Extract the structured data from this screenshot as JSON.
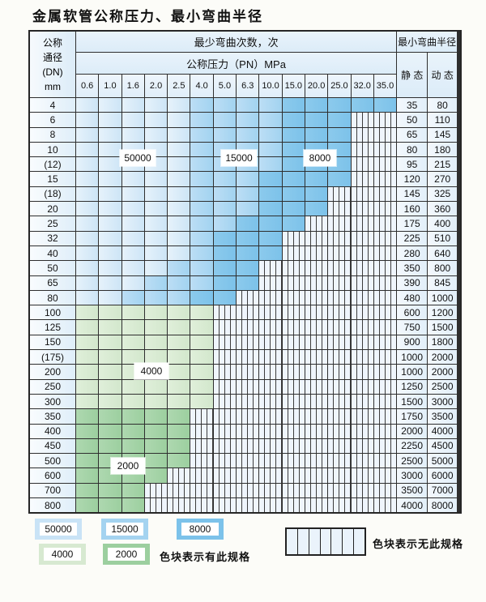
{
  "title": "金属软管公称压力、最小弯曲半径",
  "table": {
    "corner": {
      "lines": [
        "公称",
        "通径",
        "(DN)",
        "mm"
      ]
    },
    "bend_cycles_header": "最少弯曲次数，次",
    "radius_header": "最小弯曲半径",
    "pressure_header": "公称压力（PN）MPa",
    "static_header": "静 态",
    "dynamic_header": "动 态",
    "pressures": [
      "0.6",
      "1.0",
      "1.6",
      "2.0",
      "2.5",
      "4.0",
      "5.0",
      "6.3",
      "10.0",
      "15.0",
      "20.0",
      "25.0",
      "32.0",
      "35.0"
    ],
    "zone_key": {
      "L": "50000次 色块",
      "M": "15000次 色块",
      "D": "8000次 色块",
      "G": "4000次 色块",
      "E": "2000次 色块",
      "H": "无此规格(竖线网纹)"
    },
    "rows": [
      {
        "dn": "4",
        "cells": "LLLLLMMMMDDDDD",
        "static": "35",
        "dynamic": "80"
      },
      {
        "dn": "6",
        "cells": "LLLLLMMMMDDDHH",
        "static": "50",
        "dynamic": "110"
      },
      {
        "dn": "8",
        "cells": "LLLLLMMMMDDDHH",
        "static": "65",
        "dynamic": "145"
      },
      {
        "dn": "10",
        "cells": "LLLLLMMMMDDDHH",
        "static": "80",
        "dynamic": "180"
      },
      {
        "dn": "(12)",
        "cells": "LLLLLMMMMDDDHH",
        "static": "95",
        "dynamic": "215"
      },
      {
        "dn": "15",
        "cells": "LLLLLMMMDDDDHH",
        "static": "120",
        "dynamic": "270"
      },
      {
        "dn": "(18)",
        "cells": "LLLLLMMMDDDHHH",
        "static": "145",
        "dynamic": "325"
      },
      {
        "dn": "20",
        "cells": "LLLLLMMMDDDHHH",
        "static": "160",
        "dynamic": "360"
      },
      {
        "dn": "25",
        "cells": "LLLLLMMDDDHHHH",
        "static": "175",
        "dynamic": "400"
      },
      {
        "dn": "32",
        "cells": "LLLLLMDDDHHHHH",
        "static": "225",
        "dynamic": "510"
      },
      {
        "dn": "40",
        "cells": "LLLLLMDDDHHHHH",
        "static": "280",
        "dynamic": "640"
      },
      {
        "dn": "50",
        "cells": "LLLLMMDDHHHHHH",
        "static": "350",
        "dynamic": "800"
      },
      {
        "dn": "65",
        "cells": "LLLMMMDDHHHHHH",
        "static": "390",
        "dynamic": "845"
      },
      {
        "dn": "80",
        "cells": "LLMMMDDHHHHHHH",
        "static": "480",
        "dynamic": "1000"
      },
      {
        "dn": "100",
        "cells": "GGGGGGHHHHHHHH",
        "static": "600",
        "dynamic": "1200"
      },
      {
        "dn": "125",
        "cells": "GGGGGGHHHHHHHH",
        "static": "750",
        "dynamic": "1500"
      },
      {
        "dn": "150",
        "cells": "GGGGGGHHHHHHHH",
        "static": "900",
        "dynamic": "1800"
      },
      {
        "dn": "(175)",
        "cells": "GGGGGGHHHHHHHH",
        "static": "1000",
        "dynamic": "2000"
      },
      {
        "dn": "200",
        "cells": "GGGGGGHHHHHHHH",
        "static": "1000",
        "dynamic": "2000"
      },
      {
        "dn": "250",
        "cells": "GGGGGGHHHHHHHH",
        "static": "1250",
        "dynamic": "2500"
      },
      {
        "dn": "300",
        "cells": "GGGGGGHHHHHHHH",
        "static": "1500",
        "dynamic": "3000"
      },
      {
        "dn": "350",
        "cells": "EEEEEHHHHHHHHH",
        "static": "1750",
        "dynamic": "3500"
      },
      {
        "dn": "400",
        "cells": "EEEEEHHHHHHHHH",
        "static": "2000",
        "dynamic": "4000"
      },
      {
        "dn": "450",
        "cells": "EEEEEHHHHHHHHH",
        "static": "2250",
        "dynamic": "4500"
      },
      {
        "dn": "500",
        "cells": "EEEEEHHHHHHHHH",
        "static": "2500",
        "dynamic": "5000"
      },
      {
        "dn": "600",
        "cells": "EEEEHHHHHHHHHH",
        "static": "3000",
        "dynamic": "6000"
      },
      {
        "dn": "700",
        "cells": "EEEHHHHHHHHHHH",
        "static": "3500",
        "dynamic": "7000"
      },
      {
        "dn": "800",
        "cells": "EEEHHHHHHHHHHH",
        "static": "4000",
        "dynamic": "8000"
      }
    ]
  },
  "overlays": {
    "b50000": "50000",
    "b15000": "15000",
    "b8000": "8000",
    "b4000": "4000",
    "b2000": "2000"
  },
  "legend": {
    "items": [
      {
        "label": "50000",
        "color": "#c9e3f6"
      },
      {
        "label": "15000",
        "color": "#a4d3f0"
      },
      {
        "label": "8000",
        "color": "#7cc2ea"
      },
      {
        "label": "4000",
        "color": "#d7e9d1"
      },
      {
        "label": "2000",
        "color": "#9ccf9f"
      }
    ],
    "has_spec_text": "色块表示有此规格",
    "no_spec_text": "色块表示无此规格"
  },
  "colors": {
    "zone_50000": "#cde5f6",
    "zone_15000": "#a2d3f0",
    "zone_8000": "#7cc2ea",
    "zone_4000": "#d2e7cc",
    "zone_2000": "#9ccf9f",
    "hatch_bg": "#eff5fc",
    "grid_line": "#2e2e2e",
    "header_bg": "#dcecf8"
  }
}
